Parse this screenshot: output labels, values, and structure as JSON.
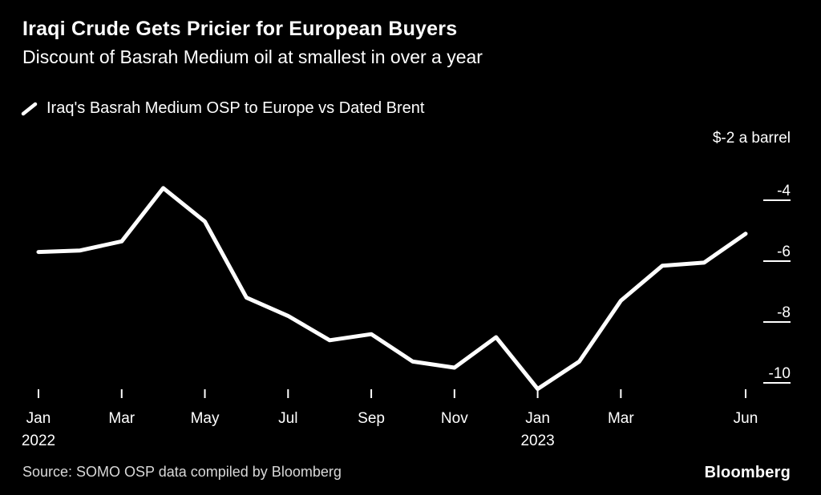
{
  "header": {
    "title": "Iraqi Crude Gets Pricier for European Buyers",
    "subtitle": "Discount of Basrah Medium oil at smallest in over a year"
  },
  "legend": {
    "label": "Iraq's Basrah Medium OSP to Europe vs Dated Brent"
  },
  "chart_data": {
    "type": "line",
    "title": "Iraqi Crude Gets Pricier for European Buyers",
    "subtitle": "Discount of Basrah Medium oil at smallest in over a year",
    "series_name": "Iraq's Basrah Medium OSP to Europe vs Dated Brent",
    "unit_label": "$-2 a barrel",
    "x": [
      "Jan 2022",
      "Feb 2022",
      "Mar 2022",
      "Apr 2022",
      "May 2022",
      "Jun 2022",
      "Jul 2022",
      "Aug 2022",
      "Sep 2022",
      "Oct 2022",
      "Nov 2022",
      "Dec 2022",
      "Jan 2023",
      "Feb 2023",
      "Mar 2023",
      "Apr 2023",
      "May 2023",
      "Jun 2023"
    ],
    "values": [
      -5.7,
      -5.65,
      -5.35,
      -3.6,
      -4.7,
      -7.2,
      -7.8,
      -8.6,
      -8.4,
      -9.3,
      -9.5,
      -8.5,
      -10.2,
      -9.3,
      -7.3,
      -6.15,
      -6.05,
      -5.1
    ],
    "y_ticks": [
      -4,
      -6,
      -8,
      -10
    ],
    "x_ticks": [
      {
        "index": 0,
        "label": "Jan",
        "sublabel": "2022"
      },
      {
        "index": 2,
        "label": "Mar"
      },
      {
        "index": 4,
        "label": "May"
      },
      {
        "index": 6,
        "label": "Jul"
      },
      {
        "index": 8,
        "label": "Sep"
      },
      {
        "index": 10,
        "label": "Nov"
      },
      {
        "index": 12,
        "label": "Jan",
        "sublabel": "2023"
      },
      {
        "index": 14,
        "label": "Mar"
      },
      {
        "index": 17,
        "label": "Jun"
      }
    ],
    "ylim": [
      -10.8,
      -2
    ],
    "grid": false,
    "legend_position": "top-left",
    "line_color": "#ffffff",
    "background": "#000000"
  },
  "footer": {
    "source": "Source: SOMO OSP data compiled by Bloomberg",
    "brand": "Bloomberg"
  }
}
